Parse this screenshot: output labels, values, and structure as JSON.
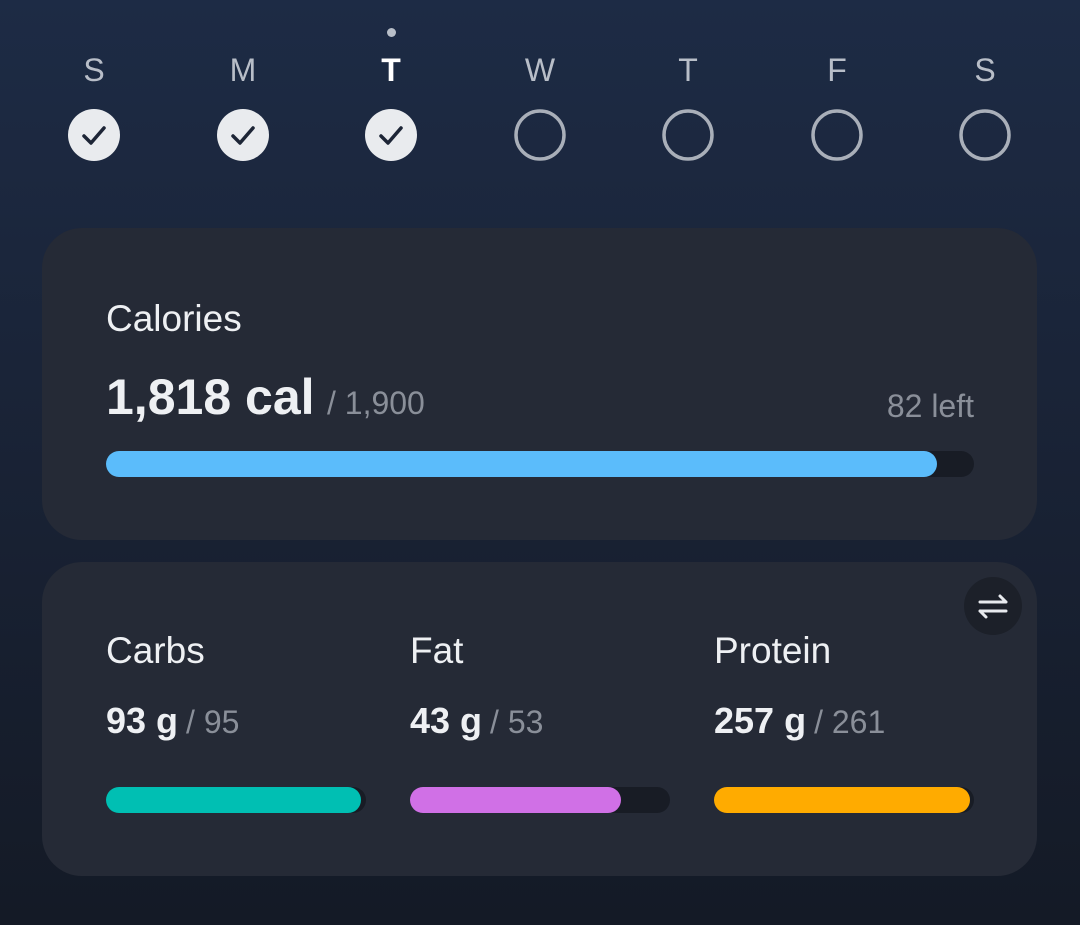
{
  "week": {
    "today": 2,
    "days": [
      {
        "letter": "S",
        "done": true
      },
      {
        "letter": "M",
        "done": true
      },
      {
        "letter": "T",
        "done": true
      },
      {
        "letter": "W",
        "done": false
      },
      {
        "letter": "T",
        "done": false
      },
      {
        "letter": "F",
        "done": false
      },
      {
        "letter": "S",
        "done": false
      }
    ]
  },
  "calories": {
    "title": "Calories",
    "consumed": {
      "value": 1818,
      "label": "1,818 cal"
    },
    "goal": {
      "value": 1900,
      "label": "/ 1,900"
    },
    "left": {
      "value": 82,
      "label": "82 left"
    },
    "color": "#5bbcfb"
  },
  "macros": [
    {
      "name": "Carbs",
      "consumed": {
        "value": 93,
        "label": "93 g"
      },
      "goal": {
        "value": 95,
        "label": "/ 95"
      },
      "color": "#00bfb3"
    },
    {
      "name": "Fat",
      "consumed": {
        "value": 43,
        "label": "43 g"
      },
      "goal": {
        "value": 53,
        "label": "/ 53"
      },
      "color": "#d070e6"
    },
    {
      "name": "Protein",
      "consumed": {
        "value": 257,
        "label": "257 g"
      },
      "goal": {
        "value": 261,
        "label": "/ 261"
      },
      "color": "#ffab00"
    }
  ]
}
